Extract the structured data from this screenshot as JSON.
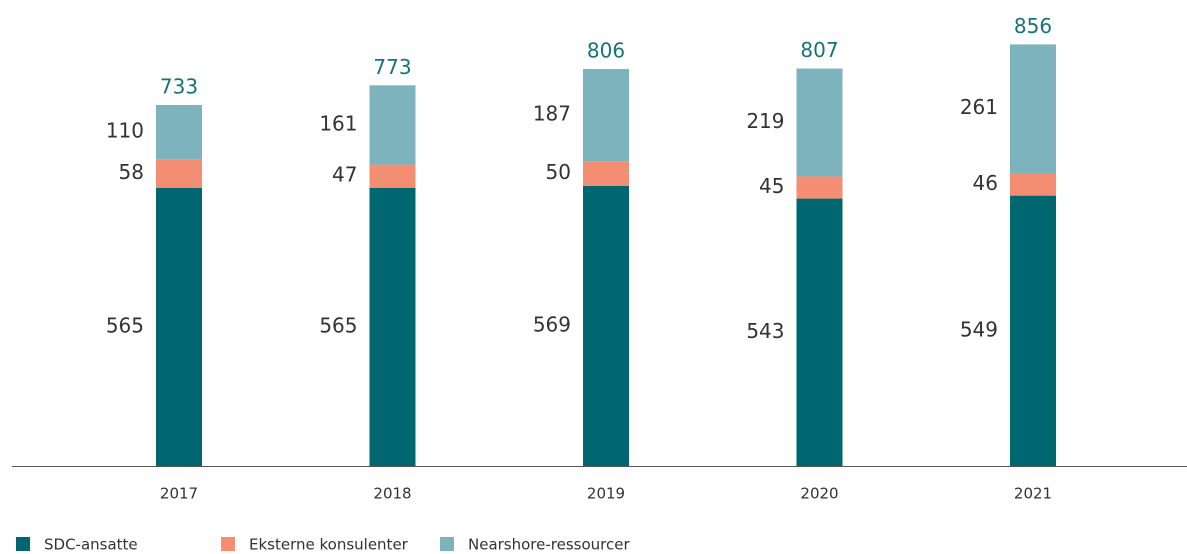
{
  "chart_data": {
    "type": "stacked_bar",
    "categories": [
      "2017",
      "2018",
      "2019",
      "2020",
      "2021"
    ],
    "series": [
      {
        "name": "SDC-ansatte",
        "color": "#006670",
        "values": [
          565,
          565,
          569,
          543,
          549
        ]
      },
      {
        "name": "Eksterne konsulenter",
        "color": "#f38e72",
        "values": [
          58,
          47,
          50,
          45,
          46
        ]
      },
      {
        "name": "Nearshore-ressourcer",
        "color": "#7db3bc",
        "values": [
          110,
          161,
          187,
          219,
          261
        ]
      }
    ],
    "totals": [
      733,
      773,
      806,
      807,
      856
    ],
    "total_color": "#17727a",
    "legend": "bottom-left"
  }
}
